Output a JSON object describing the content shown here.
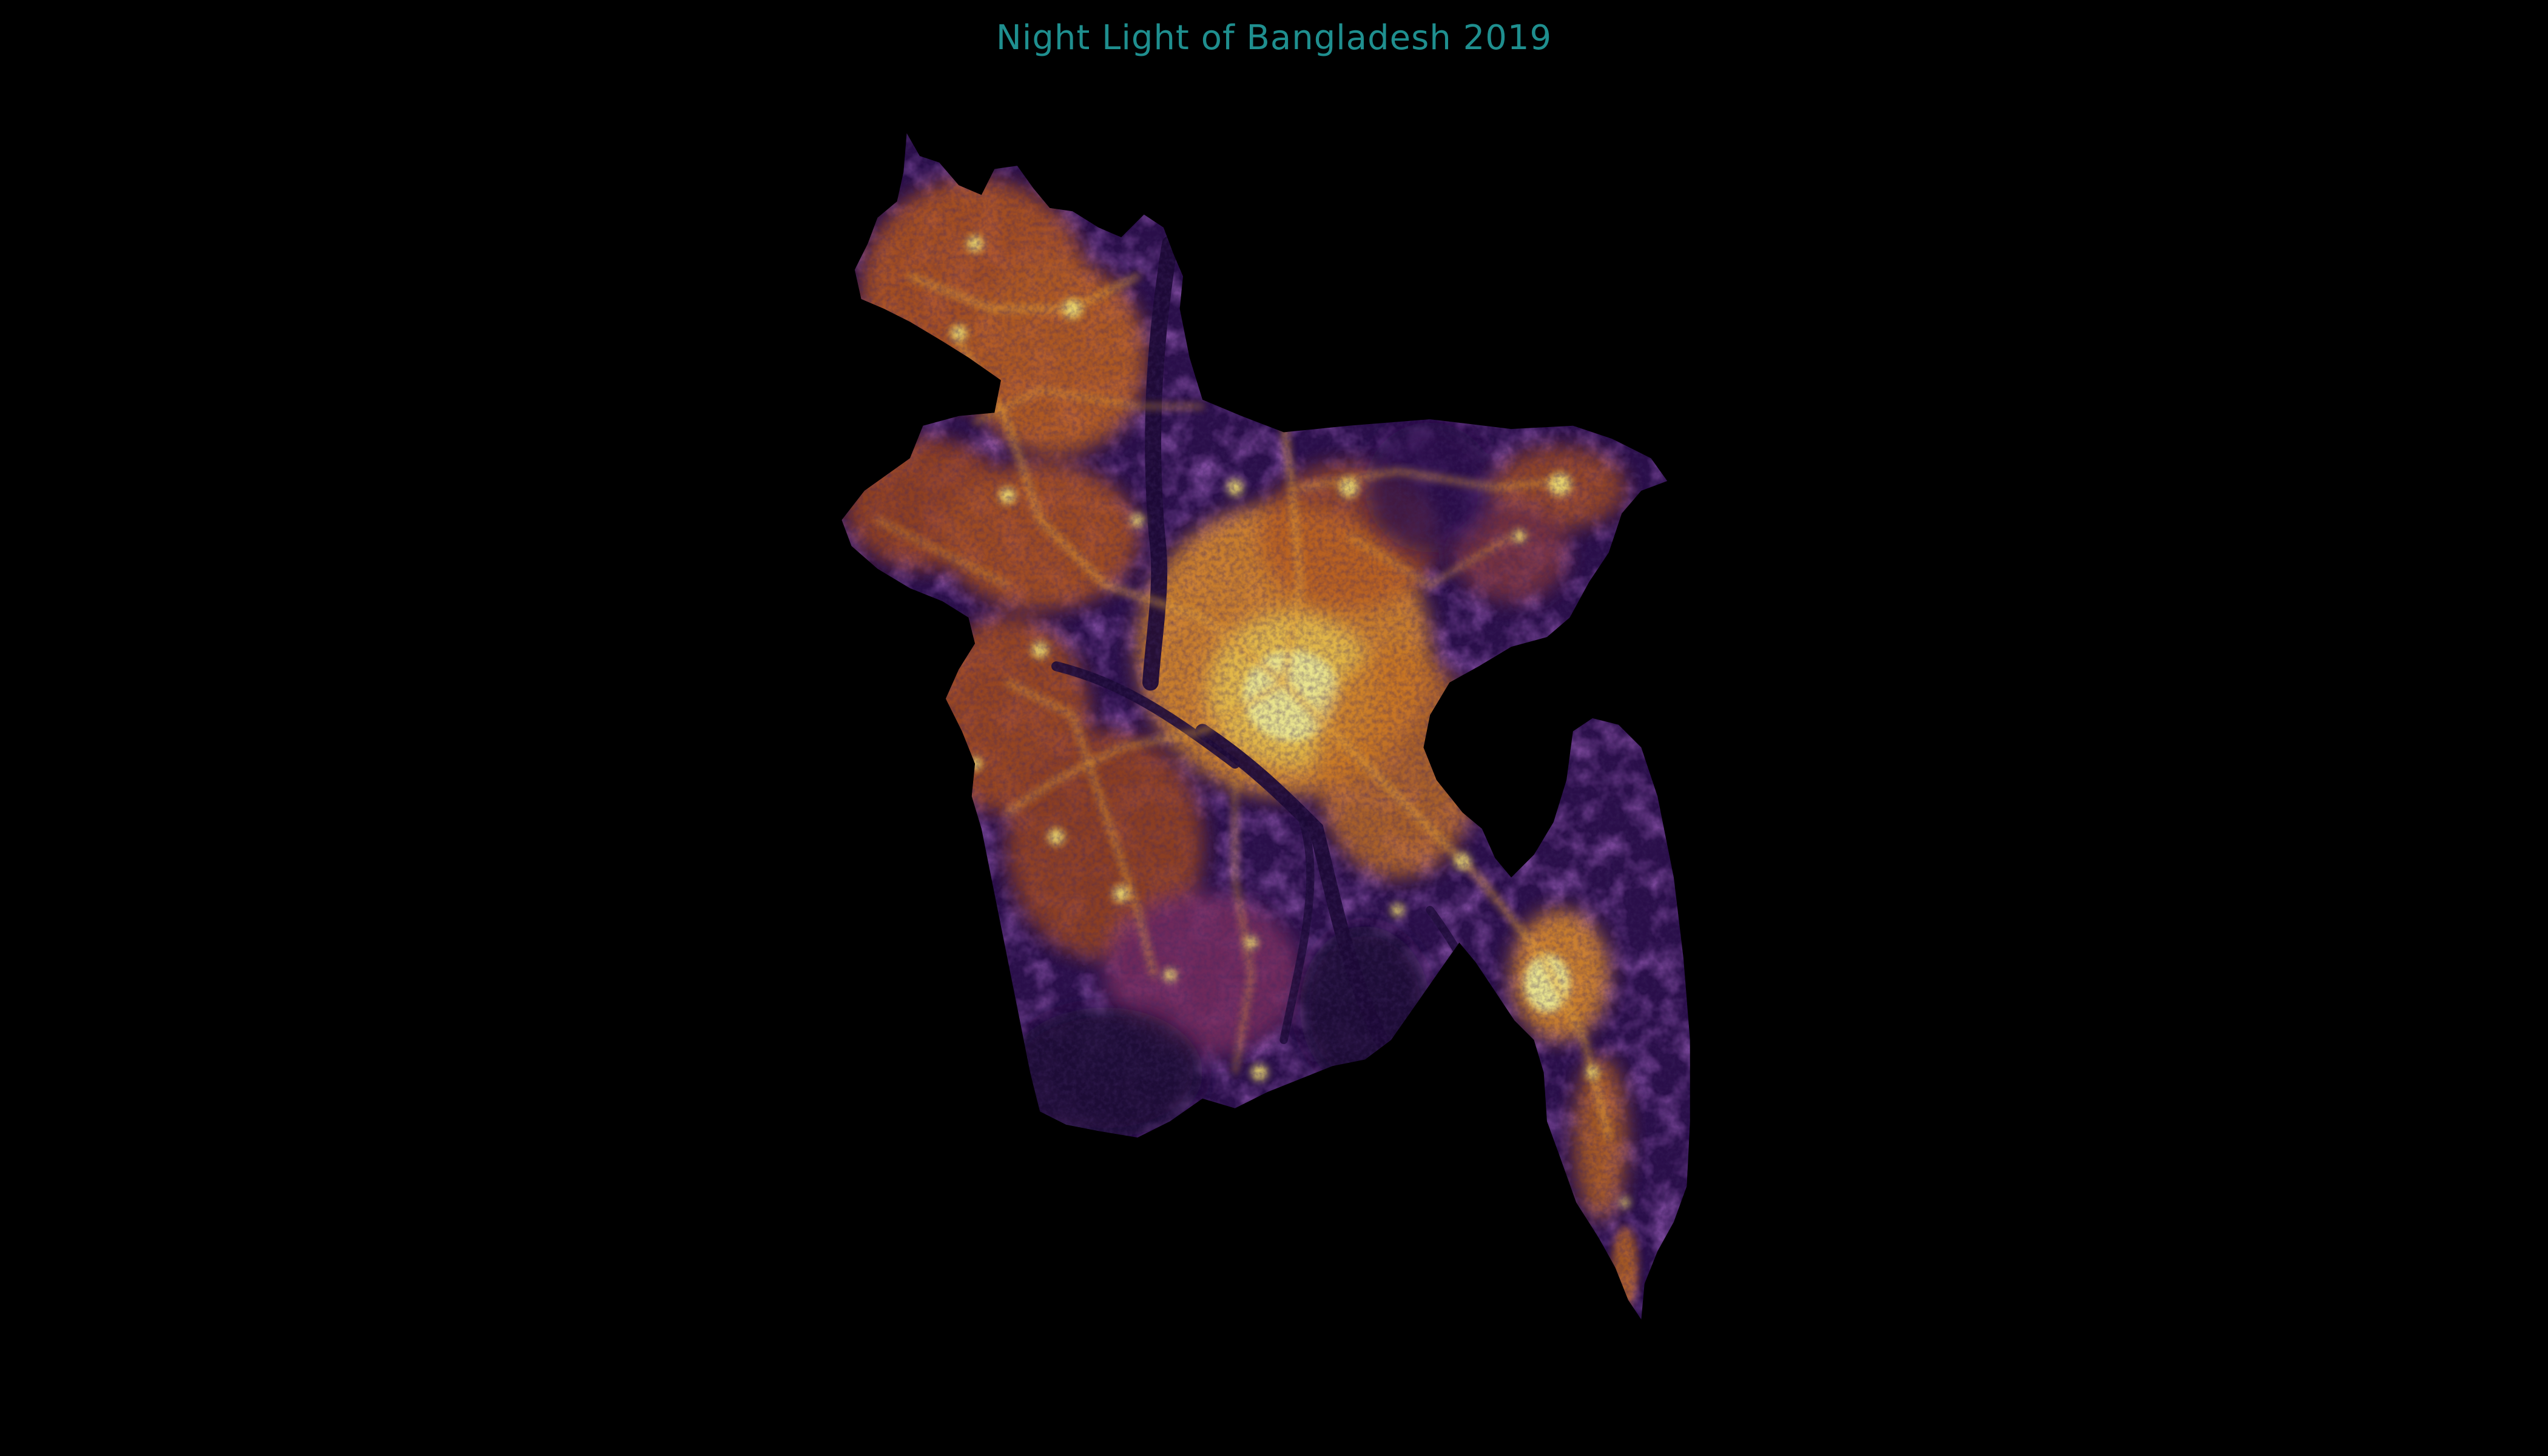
{
  "title": "Night Light of Bangladesh 2019",
  "map": {
    "subject": "night-time lights, Bangladesh",
    "colormap": "inferno",
    "colors": {
      "background": "#000000",
      "title": "#1f8f8f",
      "low": "#1c0a36",
      "mid_low": "#3d1460",
      "mid": "#7a2d5e",
      "mid_high": "#c06a1c",
      "high": "#e2a23a",
      "peak": "#e9e48e"
    }
  }
}
